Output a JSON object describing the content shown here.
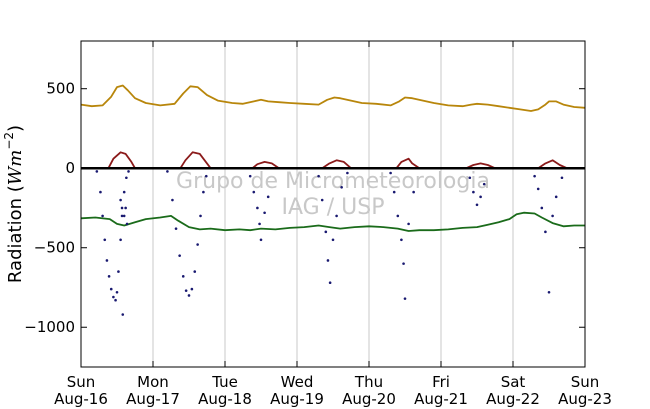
{
  "chart_data": {
    "type": "line",
    "ylabel": "Radiation",
    "ylabel_unit": "Wm^{-2}",
    "ylim": [
      -1250,
      800
    ],
    "xlim": [
      0,
      7
    ],
    "yticks": [
      500,
      0,
      -500,
      -1000
    ],
    "ytick_labels": [
      "500",
      "0",
      "−500",
      "−1000"
    ],
    "grid": "vertical",
    "watermark": [
      "Grupo de Micrometeorologia",
      "IAG / USP"
    ],
    "x_ticks": [
      {
        "x": 0,
        "day": "Sun",
        "date": "Aug-16"
      },
      {
        "x": 1,
        "day": "Mon",
        "date": "Aug-17"
      },
      {
        "x": 2,
        "day": "Tue",
        "date": "Aug-18"
      },
      {
        "x": 3,
        "day": "Wed",
        "date": "Aug-19"
      },
      {
        "x": 4,
        "day": "Thu",
        "date": "Aug-20"
      },
      {
        "x": 5,
        "day": "Fri",
        "date": "Aug-21"
      },
      {
        "x": 6,
        "day": "Sat",
        "date": "Aug-22"
      },
      {
        "x": 7,
        "day": "Sun",
        "date": "Aug-23"
      }
    ],
    "series": [
      {
        "color": "#b8860b",
        "style": "line",
        "values": [
          [
            0,
            400
          ],
          [
            0.15,
            390
          ],
          [
            0.3,
            395
          ],
          [
            0.42,
            450
          ],
          [
            0.5,
            510
          ],
          [
            0.58,
            520
          ],
          [
            0.65,
            490
          ],
          [
            0.75,
            440
          ],
          [
            0.9,
            410
          ],
          [
            1.1,
            395
          ],
          [
            1.3,
            405
          ],
          [
            1.42,
            470
          ],
          [
            1.52,
            515
          ],
          [
            1.62,
            510
          ],
          [
            1.75,
            460
          ],
          [
            1.9,
            425
          ],
          [
            2.1,
            410
          ],
          [
            2.25,
            405
          ],
          [
            2.4,
            420
          ],
          [
            2.5,
            430
          ],
          [
            2.6,
            420
          ],
          [
            2.75,
            415
          ],
          [
            2.9,
            410
          ],
          [
            3.1,
            405
          ],
          [
            3.3,
            400
          ],
          [
            3.42,
            430
          ],
          [
            3.52,
            445
          ],
          [
            3.6,
            440
          ],
          [
            3.75,
            425
          ],
          [
            3.9,
            410
          ],
          [
            4.1,
            405
          ],
          [
            4.3,
            395
          ],
          [
            4.42,
            420
          ],
          [
            4.5,
            445
          ],
          [
            4.6,
            440
          ],
          [
            4.75,
            425
          ],
          [
            4.9,
            410
          ],
          [
            5.1,
            395
          ],
          [
            5.3,
            390
          ],
          [
            5.42,
            400
          ],
          [
            5.5,
            405
          ],
          [
            5.65,
            400
          ],
          [
            5.8,
            390
          ],
          [
            5.95,
            380
          ],
          [
            6.1,
            370
          ],
          [
            6.25,
            360
          ],
          [
            6.35,
            370
          ],
          [
            6.45,
            400
          ],
          [
            6.5,
            420
          ],
          [
            6.6,
            420
          ],
          [
            6.7,
            400
          ],
          [
            6.85,
            385
          ],
          [
            7,
            380
          ]
        ]
      },
      {
        "color": "#8b1a1a",
        "style": "line",
        "values": [
          [
            0,
            0
          ],
          [
            0.38,
            0
          ],
          [
            0.45,
            60
          ],
          [
            0.55,
            100
          ],
          [
            0.62,
            90
          ],
          [
            0.7,
            40
          ],
          [
            0.75,
            0
          ],
          [
            1.38,
            0
          ],
          [
            1.45,
            50
          ],
          [
            1.55,
            100
          ],
          [
            1.65,
            90
          ],
          [
            1.75,
            30
          ],
          [
            1.8,
            0
          ],
          [
            2.38,
            0
          ],
          [
            2.45,
            25
          ],
          [
            2.55,
            40
          ],
          [
            2.65,
            30
          ],
          [
            2.75,
            0
          ],
          [
            3.35,
            0
          ],
          [
            3.45,
            30
          ],
          [
            3.55,
            50
          ],
          [
            3.65,
            40
          ],
          [
            3.75,
            0
          ],
          [
            4.38,
            0
          ],
          [
            4.45,
            40
          ],
          [
            4.55,
            60
          ],
          [
            4.6,
            30
          ],
          [
            4.7,
            0
          ],
          [
            5.35,
            0
          ],
          [
            5.45,
            20
          ],
          [
            5.55,
            30
          ],
          [
            5.65,
            20
          ],
          [
            5.75,
            0
          ],
          [
            6.35,
            0
          ],
          [
            6.45,
            30
          ],
          [
            6.55,
            50
          ],
          [
            6.65,
            20
          ],
          [
            6.75,
            0
          ],
          [
            7,
            0
          ]
        ]
      },
      {
        "color": "#1a6b1a",
        "style": "line",
        "values": [
          [
            0,
            -315
          ],
          [
            0.2,
            -310
          ],
          [
            0.4,
            -320
          ],
          [
            0.5,
            -350
          ],
          [
            0.6,
            -360
          ],
          [
            0.75,
            -340
          ],
          [
            0.9,
            -320
          ],
          [
            1.1,
            -310
          ],
          [
            1.25,
            -300
          ],
          [
            1.35,
            -330
          ],
          [
            1.5,
            -370
          ],
          [
            1.65,
            -385
          ],
          [
            1.8,
            -380
          ],
          [
            2,
            -390
          ],
          [
            2.2,
            -385
          ],
          [
            2.35,
            -390
          ],
          [
            2.5,
            -380
          ],
          [
            2.7,
            -385
          ],
          [
            2.9,
            -375
          ],
          [
            3.1,
            -370
          ],
          [
            3.3,
            -360
          ],
          [
            3.45,
            -370
          ],
          [
            3.6,
            -380
          ],
          [
            3.8,
            -370
          ],
          [
            4,
            -365
          ],
          [
            4.2,
            -370
          ],
          [
            4.4,
            -380
          ],
          [
            4.55,
            -395
          ],
          [
            4.7,
            -390
          ],
          [
            4.9,
            -390
          ],
          [
            5.1,
            -385
          ],
          [
            5.3,
            -375
          ],
          [
            5.5,
            -370
          ],
          [
            5.65,
            -355
          ],
          [
            5.8,
            -340
          ],
          [
            5.95,
            -320
          ],
          [
            6.05,
            -290
          ],
          [
            6.15,
            -280
          ],
          [
            6.3,
            -285
          ],
          [
            6.4,
            -310
          ],
          [
            6.55,
            -345
          ],
          [
            6.7,
            -365
          ],
          [
            6.85,
            -360
          ],
          [
            7,
            -360
          ]
        ]
      },
      {
        "color": "#000000",
        "style": "line",
        "values": [
          [
            0,
            0
          ],
          [
            7,
            0
          ]
        ]
      },
      {
        "color": "#191970",
        "style": "scatter",
        "values": [
          [
            0.22,
            -20
          ],
          [
            0.27,
            -150
          ],
          [
            0.3,
            -300
          ],
          [
            0.33,
            -450
          ],
          [
            0.36,
            -580
          ],
          [
            0.39,
            -680
          ],
          [
            0.42,
            -760
          ],
          [
            0.45,
            -810
          ],
          [
            0.48,
            -830
          ],
          [
            0.5,
            -780
          ],
          [
            0.52,
            -650
          ],
          [
            0.55,
            -450
          ],
          [
            0.57,
            -300
          ],
          [
            0.6,
            -150
          ],
          [
            0.63,
            -60
          ],
          [
            0.66,
            -20
          ],
          [
            0.55,
            -200
          ],
          [
            0.57,
            -250
          ],
          [
            0.6,
            -300
          ],
          [
            0.62,
            -250
          ],
          [
            0.64,
            -350
          ],
          [
            0.58,
            -920
          ],
          [
            1.2,
            -20
          ],
          [
            1.27,
            -200
          ],
          [
            1.32,
            -380
          ],
          [
            1.37,
            -550
          ],
          [
            1.42,
            -680
          ],
          [
            1.46,
            -770
          ],
          [
            1.5,
            -800
          ],
          [
            1.54,
            -760
          ],
          [
            1.58,
            -650
          ],
          [
            1.62,
            -480
          ],
          [
            1.66,
            -300
          ],
          [
            1.7,
            -150
          ],
          [
            1.74,
            -50
          ],
          [
            2.35,
            -50
          ],
          [
            2.4,
            -150
          ],
          [
            2.45,
            -250
          ],
          [
            2.48,
            -350
          ],
          [
            2.5,
            -450
          ],
          [
            2.55,
            -280
          ],
          [
            2.6,
            -180
          ],
          [
            3.3,
            -50
          ],
          [
            3.35,
            -200
          ],
          [
            3.4,
            -400
          ],
          [
            3.43,
            -580
          ],
          [
            3.46,
            -720
          ],
          [
            3.5,
            -450
          ],
          [
            3.55,
            -300
          ],
          [
            3.62,
            -120
          ],
          [
            3.7,
            -30
          ],
          [
            4.3,
            -30
          ],
          [
            4.35,
            -150
          ],
          [
            4.4,
            -300
          ],
          [
            4.45,
            -450
          ],
          [
            4.48,
            -600
          ],
          [
            4.5,
            -820
          ],
          [
            4.55,
            -350
          ],
          [
            4.62,
            -150
          ],
          [
            5.4,
            -60
          ],
          [
            5.45,
            -150
          ],
          [
            5.5,
            -230
          ],
          [
            5.55,
            -180
          ],
          [
            5.6,
            -100
          ],
          [
            6.3,
            -50
          ],
          [
            6.35,
            -130
          ],
          [
            6.4,
            -250
          ],
          [
            6.45,
            -400
          ],
          [
            6.5,
            -780
          ],
          [
            6.55,
            -300
          ],
          [
            6.6,
            -180
          ],
          [
            6.68,
            -60
          ]
        ]
      }
    ]
  }
}
